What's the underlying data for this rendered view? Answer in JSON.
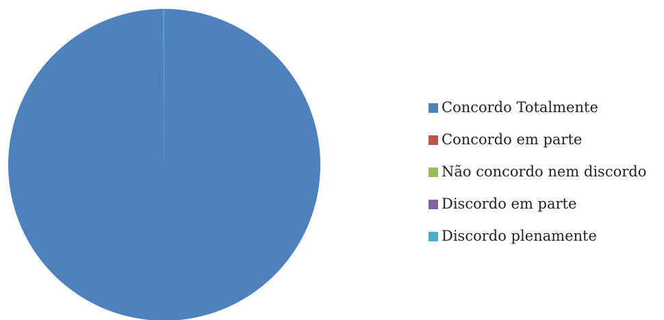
{
  "chart_data": {
    "type": "pie",
    "title": "",
    "series": [
      {
        "name": "",
        "values": [
          99.9,
          0,
          0,
          0,
          0.1
        ]
      }
    ],
    "categories": [
      "Concordo Totalmente",
      "Concordo em parte",
      "Não concordo nem discordo",
      "Discordo em parte",
      "Discordo plenamente"
    ],
    "colors": [
      "#4F81BD",
      "#C0504D",
      "#9BBB59",
      "#8064A2",
      "#4BACC6"
    ],
    "legend_position": "right",
    "start_angle": "top",
    "direction": "clockwise"
  },
  "legend": {
    "items": [
      {
        "label": "Concordo Totalmente",
        "color": "#4F81BD"
      },
      {
        "label": "Concordo em parte",
        "color": "#C0504D"
      },
      {
        "label": "Não concordo nem discordo",
        "color": "#9BBB59"
      },
      {
        "label": "Discordo em parte",
        "color": "#8064A2"
      },
      {
        "label": "Discordo plenamente",
        "color": "#4BACC6"
      }
    ]
  }
}
